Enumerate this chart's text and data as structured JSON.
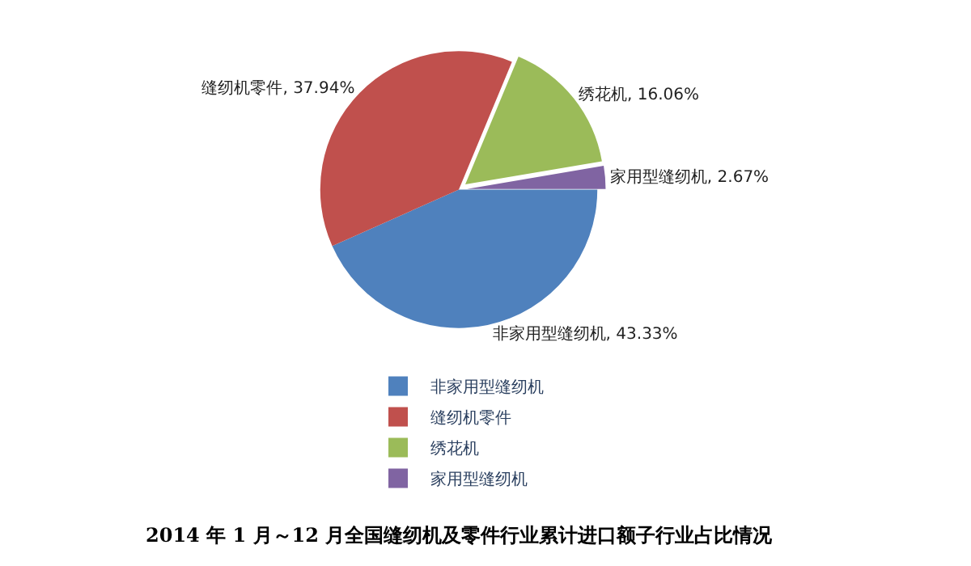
{
  "chart_data": {
    "type": "pie",
    "title": "2014 年 1 月～12 月全国缝纫机及零件行业累计进口额子行业占比情况",
    "categories": [
      "非家用型缝纫机",
      "缝纫机零件",
      "绣花机",
      "家用型缝纫机"
    ],
    "values": [
      43.33,
      37.94,
      16.06,
      2.67
    ],
    "colors": [
      "#4f81bd",
      "#c0504d",
      "#9bbb59",
      "#8064a2"
    ],
    "value_labels": [
      "非家用型缝纫机, 43.33%",
      "缝纫机零件, 37.94%",
      "绣花机, 16.06%",
      "家用型缝纫机, 2.67%"
    ],
    "legend": "bottom"
  }
}
